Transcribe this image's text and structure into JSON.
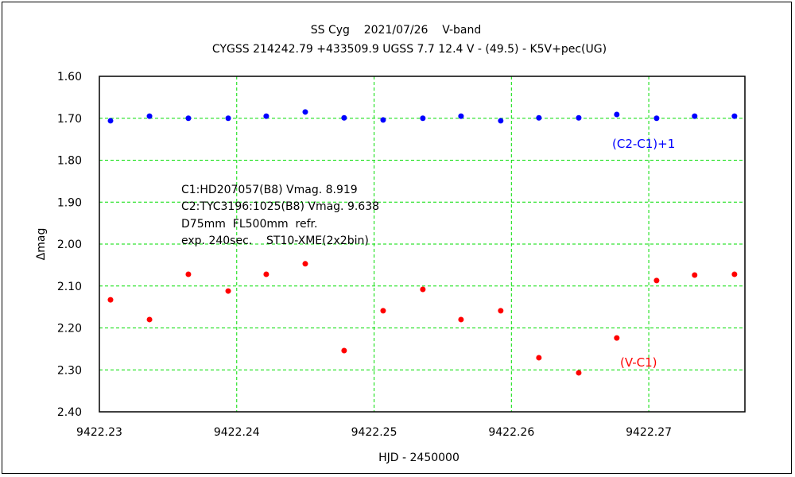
{
  "chart_data": {
    "type": "scatter",
    "title": "SS Cyg    2021/07/26    V-band",
    "subtitle": "CYGSS 214242.79 +433509.9 UGSS 7.7 12.4 V - (49.5) - K5V+pec(UG)",
    "xlabel": "HJD - 2450000",
    "ylabel": "Δmag",
    "xlim": [
      9422.23,
      9422.277
    ],
    "ylim": [
      1.6,
      2.4
    ],
    "y_inverted": true,
    "grid": true,
    "xticks": [
      "9422.23",
      "9422.24",
      "9422.25",
      "9422.26",
      "9422.27"
    ],
    "xtick_values": [
      9422.23,
      9422.24,
      9422.25,
      9422.26,
      9422.27
    ],
    "yticks": [
      "1.60",
      "1.70",
      "1.80",
      "1.90",
      "2.00",
      "2.10",
      "2.20",
      "2.30",
      "2.40"
    ],
    "ytick_values": [
      1.6,
      1.7,
      1.8,
      1.9,
      2.0,
      2.1,
      2.2,
      2.3,
      2.4
    ],
    "x": [
      9422.23081,
      9422.23365,
      9422.23648,
      9422.23938,
      9422.24215,
      9422.24499,
      9422.24782,
      9422.25066,
      9422.25355,
      9422.25633,
      9422.25922,
      9422.262,
      9422.2649,
      9422.26767,
      9422.27057,
      9422.27334,
      9422.27624
    ],
    "series": [
      {
        "name": "(C2-C1)+1",
        "color": "#0000ff",
        "values": [
          1.706,
          1.695,
          1.7,
          1.7,
          1.695,
          1.685,
          1.699,
          1.704,
          1.7,
          1.695,
          1.706,
          1.699,
          1.699,
          1.691,
          1.7,
          1.695,
          1.695
        ]
      },
      {
        "name": "(V-C1)",
        "color": "#ff0000",
        "values": [
          2.133,
          2.18,
          2.072,
          2.112,
          2.072,
          2.047,
          2.254,
          2.159,
          2.108,
          2.18,
          2.159,
          2.271,
          2.307,
          2.224,
          2.087,
          2.074,
          2.072
        ]
      }
    ],
    "annotations": [
      "C1:HD207057(B8) Vmag. 8.919",
      "C2:TYC3196:1025(B8) Vmag. 9.638",
      "D75mm  FL500mm  refr.",
      "exp. 240sec.    ST10-XME(2x2bin)"
    ],
    "grid_color": "#00dd00"
  }
}
